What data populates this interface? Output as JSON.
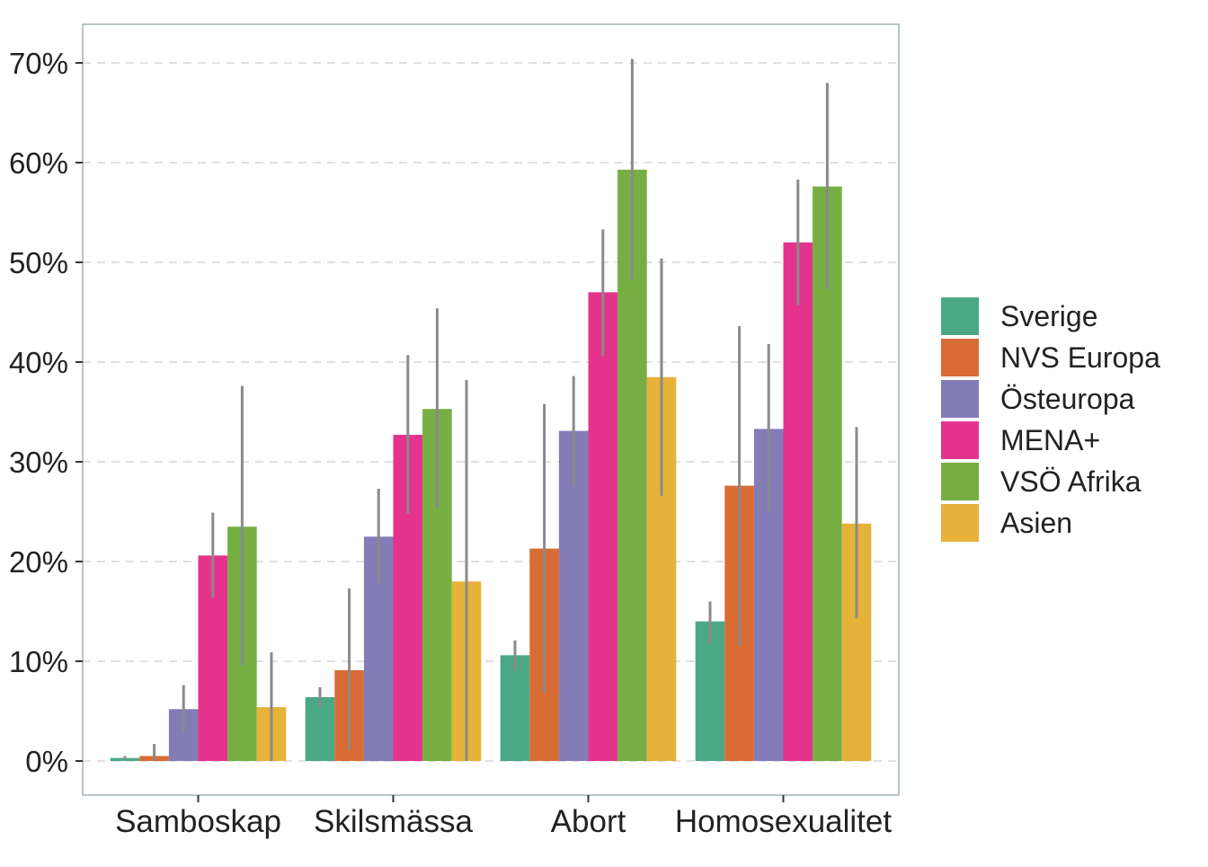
{
  "chart_data": {
    "type": "bar",
    "categories": [
      "Samboskap",
      "Skilsmässa",
      "Abort",
      "Homosexualitet"
    ],
    "ylim": [
      0,
      70
    ],
    "yticks": [
      0,
      10,
      20,
      30,
      40,
      50,
      60,
      70
    ],
    "ytick_labels": [
      "0%",
      "10%",
      "20%",
      "30%",
      "40%",
      "50%",
      "60%",
      "70%"
    ],
    "grid": true,
    "legend_position": "right",
    "series": [
      {
        "name": "Sverige",
        "color": "#4BA887",
        "values": [
          0.3,
          6.4,
          10.6,
          14.0
        ],
        "err_low": [
          0.2,
          5.4,
          9.0,
          11.8
        ],
        "err_high": [
          0.5,
          7.4,
          12.1,
          16.0
        ]
      },
      {
        "name": "NVS Europa",
        "color": "#D96B35",
        "values": [
          0.5,
          9.1,
          21.3,
          27.6
        ],
        "err_low": [
          0.0,
          1.1,
          6.8,
          11.6
        ],
        "err_high": [
          1.7,
          17.3,
          35.8,
          43.6
        ]
      },
      {
        "name": "Östeuropa",
        "color": "#847CB7",
        "values": [
          5.2,
          22.5,
          33.1,
          33.3
        ],
        "err_low": [
          2.8,
          17.8,
          27.5,
          24.9
        ],
        "err_high": [
          7.6,
          27.3,
          38.6,
          41.8
        ]
      },
      {
        "name": "MENA+",
        "color": "#E5338D",
        "values": [
          20.6,
          32.7,
          47.0,
          52.0
        ],
        "err_low": [
          16.4,
          24.8,
          40.6,
          45.7
        ],
        "err_high": [
          24.9,
          40.7,
          53.3,
          58.3
        ]
      },
      {
        "name": "VSÖ Afrika",
        "color": "#76AE43",
        "values": [
          23.5,
          35.3,
          59.3,
          57.6
        ],
        "err_low": [
          9.6,
          25.4,
          48.3,
          47.3
        ],
        "err_high": [
          37.6,
          45.4,
          70.4,
          68.0
        ]
      },
      {
        "name": "Asien",
        "color": "#E6B23A",
        "values": [
          5.4,
          18.0,
          38.5,
          23.8
        ],
        "err_low": [
          0.0,
          0.0,
          26.6,
          14.3
        ],
        "err_high": [
          10.9,
          38.2,
          50.4,
          33.5
        ]
      }
    ]
  }
}
